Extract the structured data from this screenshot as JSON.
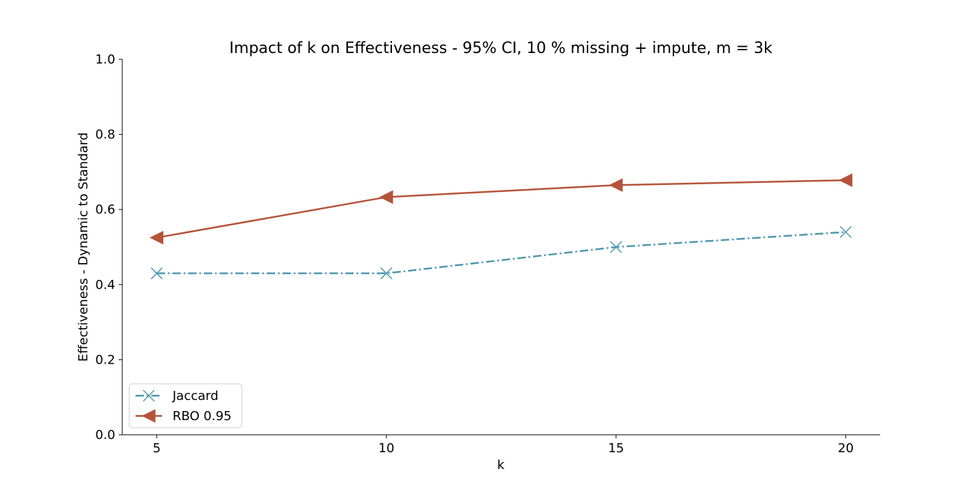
{
  "chart_data": {
    "type": "line",
    "title": "Impact of k on Effectiveness - 95% CI, 10 % missing + impute, m = 3k",
    "xlabel": "k",
    "ylabel": "Effectiveness - Dynamic to Standard",
    "x": [
      5,
      10,
      15,
      20
    ],
    "x_ticks": [
      "5",
      "10",
      "15",
      "20"
    ],
    "xlim": [
      4.25,
      20.75
    ],
    "ylim": [
      0.0,
      1.0
    ],
    "y_ticks": [
      "0.0",
      "0.2",
      "0.4",
      "0.6",
      "0.8",
      "1.0"
    ],
    "grid": false,
    "legend_position": "lower-left",
    "series": [
      {
        "name": "Jaccard",
        "values": [
          0.43,
          0.43,
          0.5,
          0.54
        ],
        "color": "#4e98ad",
        "marker": "x",
        "line_style": "dash-dot"
      },
      {
        "name": "RBO 0.95",
        "values": [
          0.525,
          0.633,
          0.665,
          0.678
        ],
        "color": "#b5533a",
        "marker": "triangle-left",
        "line_style": "solid"
      }
    ]
  }
}
